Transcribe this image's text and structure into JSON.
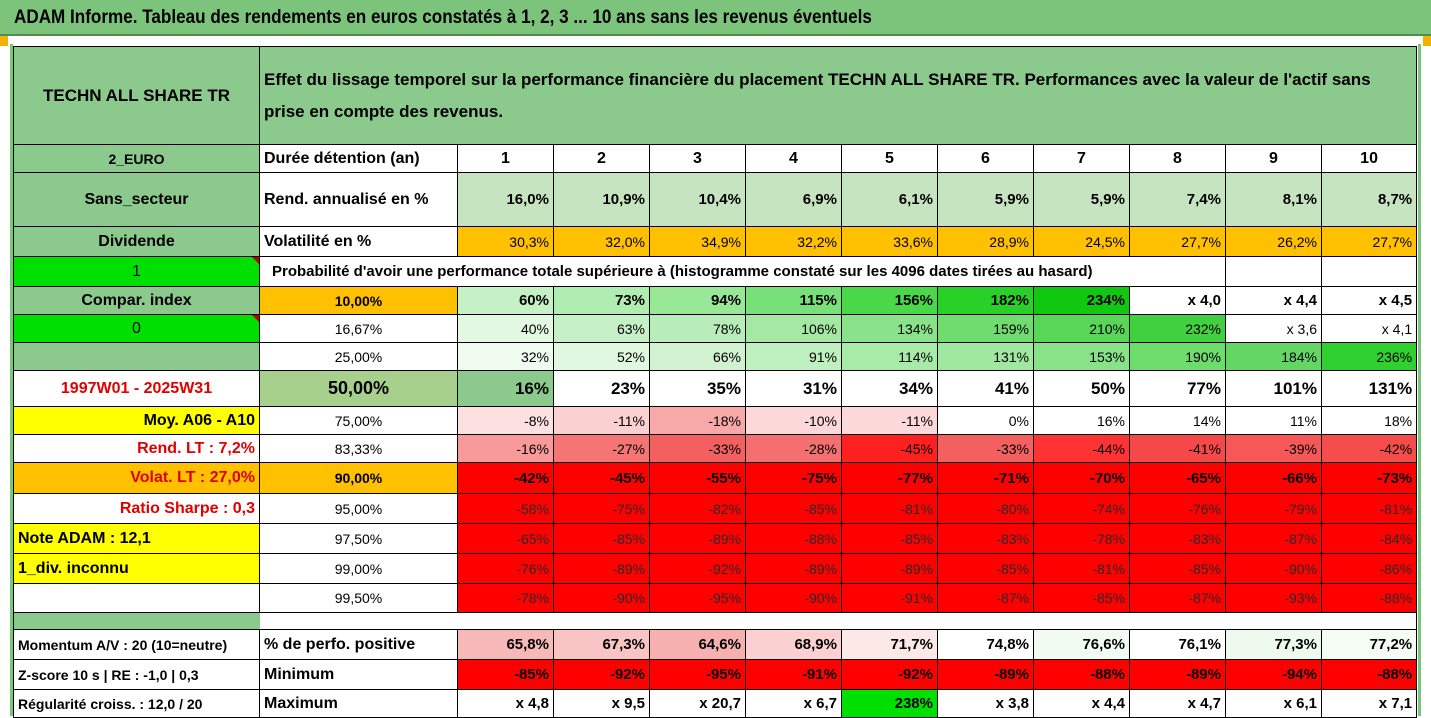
{
  "title": "ADAM Informe. Tableau des rendements en euros constatés à 1, 2, 3 ... 10 ans sans les revenus éventuels",
  "header": {
    "asset_name": "TECHN ALL SHARE TR",
    "description": "Effet du lissage temporel sur la performance financière du placement TECHN ALL SHARE TR. Performances avec la valeur de l'actif sans prise en compte des revenus."
  },
  "left_labels": {
    "currency": "2_EURO",
    "sector": "Sans_secteur",
    "dividend": "Dividende",
    "one": "1",
    "compar_index": "Compar. index",
    "zero": "0",
    "period": "1997W01 - 2025W31",
    "moy": "Moy. A06 - A10",
    "rend_lt": "Rend. LT :   7,2%",
    "volat_lt": "Volat. LT :   27,0%",
    "sharpe": "Ratio Sharpe :   0,3",
    "note": "Note ADAM : 12,1",
    "div": "1_div. inconnu",
    "momentum": "Momentum A/V : 20 (10=neutre)",
    "zscore": "Z-score 10 s  |  RE : -1,0  |  0,3",
    "regularite": "Régularité croiss. : 12,0 / 20"
  },
  "rows": {
    "duree": {
      "label": "Durée détention (an)",
      "values": [
        "1",
        "2",
        "3",
        "4",
        "5",
        "6",
        "7",
        "8",
        "9",
        "10"
      ]
    },
    "rend": {
      "label": "Rend. annualisé en %",
      "values": [
        "16,0%",
        "10,9%",
        "10,4%",
        "6,9%",
        "6,1%",
        "5,9%",
        "5,9%",
        "7,4%",
        "8,1%",
        "8,7%"
      ]
    },
    "volat": {
      "label": "Volatilité en %",
      "values": [
        "30,3%",
        "32,0%",
        "34,9%",
        "32,2%",
        "33,6%",
        "28,9%",
        "24,5%",
        "27,7%",
        "26,2%",
        "27,7%"
      ]
    },
    "proba_title": "Probabilité d'avoir une performance totale supérieure à (histogramme constaté sur les 4096 dates tirées au hasard)",
    "percentiles": [
      {
        "p": "10,00%",
        "values": [
          "60%",
          "73%",
          "94%",
          "115%",
          "156%",
          "182%",
          "234%",
          "x 4,0",
          "x 4,4",
          "x 4,5"
        ]
      },
      {
        "p": "16,67%",
        "values": [
          "40%",
          "63%",
          "78%",
          "106%",
          "134%",
          "159%",
          "210%",
          "232%",
          "x 3,6",
          "x 4,1"
        ]
      },
      {
        "p": "25,00%",
        "values": [
          "32%",
          "52%",
          "66%",
          "91%",
          "114%",
          "131%",
          "153%",
          "190%",
          "184%",
          "236%"
        ]
      },
      {
        "p": "50,00%",
        "values": [
          "16%",
          "23%",
          "35%",
          "31%",
          "34%",
          "41%",
          "50%",
          "77%",
          "101%",
          "131%"
        ]
      },
      {
        "p": "75,00%",
        "values": [
          "-8%",
          "-11%",
          "-18%",
          "-10%",
          "-11%",
          "0%",
          "16%",
          "14%",
          "11%",
          "18%"
        ]
      },
      {
        "p": "83,33%",
        "values": [
          "-16%",
          "-27%",
          "-33%",
          "-28%",
          "-45%",
          "-33%",
          "-44%",
          "-41%",
          "-39%",
          "-42%"
        ]
      },
      {
        "p": "90,00%",
        "values": [
          "-42%",
          "-45%",
          "-55%",
          "-75%",
          "-77%",
          "-71%",
          "-70%",
          "-65%",
          "-66%",
          "-73%"
        ]
      },
      {
        "p": "95,00%",
        "values": [
          "-58%",
          "-75%",
          "-82%",
          "-85%",
          "-81%",
          "-80%",
          "-74%",
          "-76%",
          "-79%",
          "-81%"
        ]
      },
      {
        "p": "97,50%",
        "values": [
          "-65%",
          "-85%",
          "-89%",
          "-88%",
          "-85%",
          "-83%",
          "-78%",
          "-83%",
          "-87%",
          "-84%"
        ]
      },
      {
        "p": "99,00%",
        "values": [
          "-76%",
          "-89%",
          "-92%",
          "-89%",
          "-89%",
          "-85%",
          "-81%",
          "-85%",
          "-90%",
          "-86%"
        ]
      },
      {
        "p": "99,50%",
        "values": [
          "-78%",
          "-90%",
          "-95%",
          "-90%",
          "-91%",
          "-87%",
          "-85%",
          "-87%",
          "-93%",
          "-88%"
        ]
      }
    ],
    "positive": {
      "label": "% de perfo. positive",
      "values": [
        "65,8%",
        "67,3%",
        "64,6%",
        "68,9%",
        "71,7%",
        "74,8%",
        "76,6%",
        "76,1%",
        "77,3%",
        "77,2%"
      ]
    },
    "minimum": {
      "label": "Minimum",
      "values": [
        "-85%",
        "-92%",
        "-95%",
        "-91%",
        "-92%",
        "-89%",
        "-88%",
        "-89%",
        "-94%",
        "-88%"
      ]
    },
    "maximum": {
      "label": "Maximum",
      "values": [
        "x 4,8",
        "x 9,5",
        "x 20,7",
        "x 6,7",
        "238%",
        "x 3,8",
        "x 4,4",
        "x 4,7",
        "x 6,1",
        "x 7,1"
      ]
    }
  },
  "colors": {
    "header_green": "#7cc47c",
    "accent_orange": "#ffc000",
    "bright_green": "#00e000",
    "yellow": "#ffff00",
    "red": "#ff0000",
    "red_text": "#e00000"
  }
}
